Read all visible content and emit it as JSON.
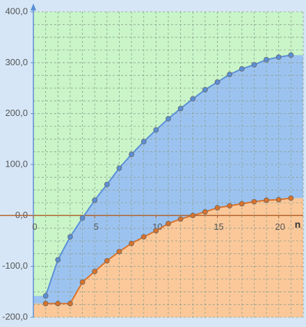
{
  "chart_data": {
    "type": "line",
    "x": [
      1,
      2,
      3,
      4,
      5,
      6,
      7,
      8,
      9,
      10,
      11,
      12,
      13,
      14,
      15,
      16,
      17,
      18,
      19,
      20,
      21
    ],
    "x_label": "n",
    "series": [
      {
        "color": "#5b8fd6",
        "fill": "#9cc3f0",
        "values": [
          -158,
          -87,
          -42,
          -5,
          30,
          61,
          93,
          120,
          145,
          168,
          190,
          210,
          229,
          247,
          262,
          277,
          288,
          296,
          306,
          311,
          315
        ]
      },
      {
        "color": "#d9722a",
        "fill": "#fbc89a",
        "values": [
          -173,
          -173,
          -173,
          -131,
          -110,
          -89,
          -71,
          -55,
          -42,
          -30,
          -16,
          -7,
          0,
          7,
          15,
          19,
          23,
          27,
          30,
          31,
          34
        ]
      }
    ],
    "xlim": [
      0,
      22
    ],
    "ylim": [
      -200,
      400
    ],
    "xticks": [
      0,
      5,
      10,
      15,
      20
    ],
    "yticks": [
      {
        "value": -200,
        "label": "-200,0"
      },
      {
        "value": -100,
        "label": "-100,0"
      },
      {
        "value": 0,
        "label": "0,0"
      },
      {
        "value": 100,
        "label": "100,0"
      },
      {
        "value": 200,
        "label": "200,0"
      },
      {
        "value": 300,
        "label": "300,0"
      },
      {
        "value": 400,
        "label": "400,0"
      }
    ],
    "grid": true,
    "grid_step": [
      1,
      25
    ]
  }
}
